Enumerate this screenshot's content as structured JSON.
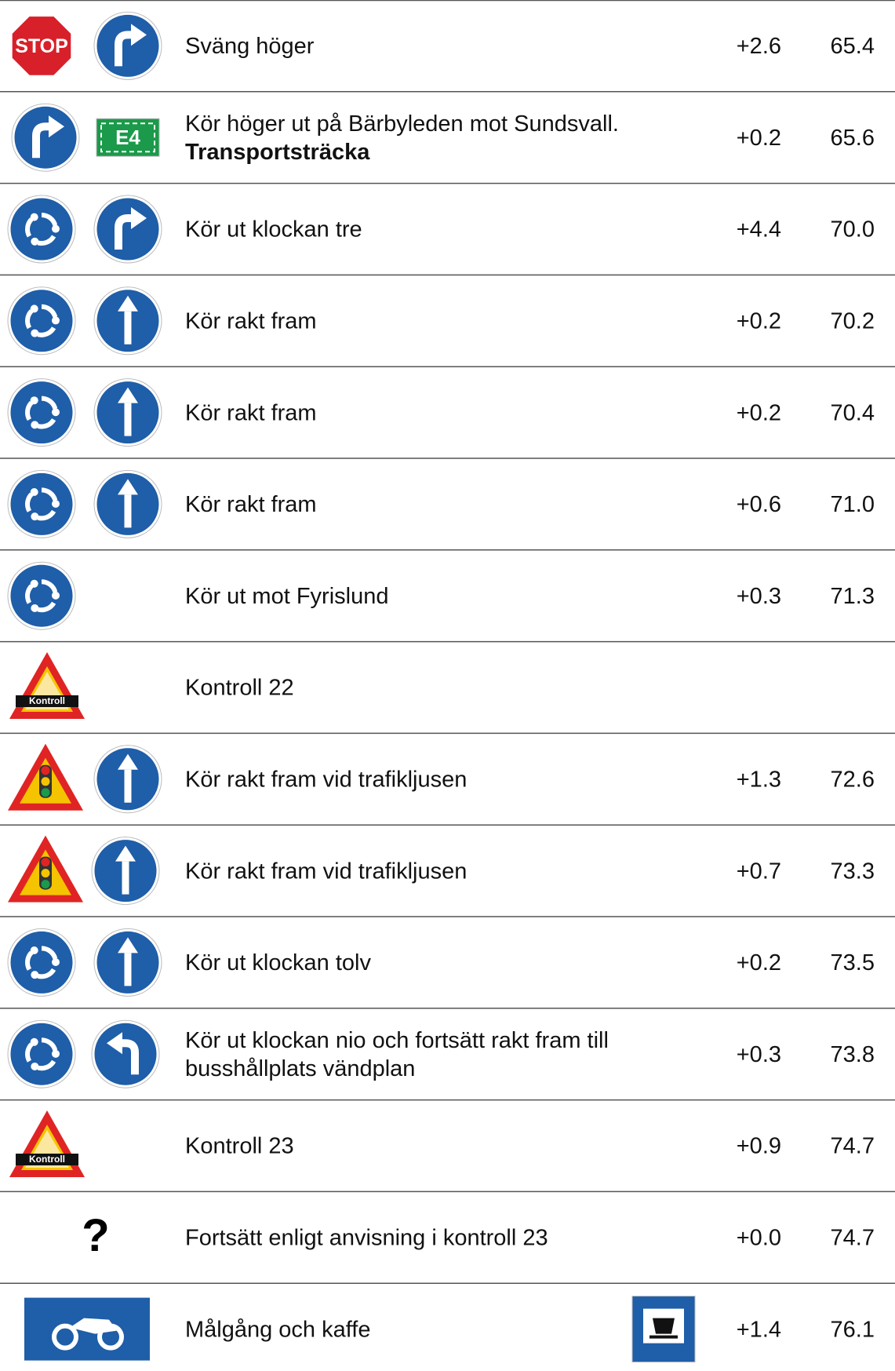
{
  "rows": [
    {
      "sign_text": "STOP",
      "lines": [
        "Sväng höger"
      ],
      "delta": "+2.6",
      "distance": "65.4"
    },
    {
      "sign_text": "E4",
      "lines": [
        "Kör höger ut på Bärbyleden mot Sundsvall."
      ],
      "bold": "Transportsträcka",
      "delta": "+0.2",
      "distance": "65.6"
    },
    {
      "lines": [
        "Kör ut klockan tre"
      ],
      "delta": "+4.4",
      "distance": "70.0"
    },
    {
      "lines": [
        "Kör rakt fram"
      ],
      "delta": "+0.2",
      "distance": "70.2"
    },
    {
      "lines": [
        "Kör rakt fram"
      ],
      "delta": "+0.2",
      "distance": "70.4"
    },
    {
      "lines": [
        "Kör rakt fram"
      ],
      "delta": "+0.6",
      "distance": "71.0"
    },
    {
      "lines": [
        "Kör ut mot Fyrislund"
      ],
      "delta": "+0.3",
      "distance": "71.3"
    },
    {
      "sign_text": "Kontroll",
      "lines": [
        "Kontroll 22"
      ]
    },
    {
      "lines": [
        "Kör rakt fram vid trafikljusen"
      ],
      "delta": "+1.3",
      "distance": "72.6"
    },
    {
      "lines": [
        "Kör rakt fram vid trafikljusen"
      ],
      "delta": "+0.7",
      "distance": "73.3"
    },
    {
      "lines": [
        "Kör ut klockan tolv"
      ],
      "delta": "+0.2",
      "distance": "73.5"
    },
    {
      "lines": [
        "Kör ut klockan nio och fortsätt rakt fram till",
        "busshållplats vändplan"
      ],
      "delta": "+0.3",
      "distance": "73.8"
    },
    {
      "sign_text": "Kontroll",
      "lines": [
        "Kontroll 23"
      ],
      "delta": "+0.9",
      "distance": "74.7"
    },
    {
      "sign_text": "?",
      "lines": [
        "Fortsätt enligt anvisning i kontroll 23"
      ],
      "delta": "+0.0",
      "distance": "74.7"
    },
    {
      "lines": [
        "Målgång och kaffe"
      ],
      "delta": "+1.4",
      "distance": "76.1"
    }
  ]
}
